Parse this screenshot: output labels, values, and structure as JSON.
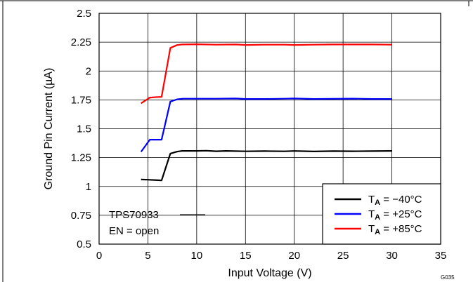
{
  "chart_data": {
    "type": "line",
    "xlabel": "Input Voltage (V)",
    "ylabel": "Ground Pin Current (µA)",
    "xlim": [
      0,
      35
    ],
    "ylim": [
      0.5,
      2.5
    ],
    "x_ticks": [
      "0",
      "5",
      "10",
      "15",
      "20",
      "25",
      "30",
      "35"
    ],
    "y_ticks": [
      "0.5",
      "0.75",
      "1",
      "1.25",
      "1.5",
      "1.75",
      "2",
      "2.25",
      "2.5"
    ],
    "grid": true,
    "legend_position": "bottom-right",
    "annotation": {
      "line1": "TPS70933",
      "line2": "EN = open"
    },
    "figure_id": "G035",
    "series": [
      {
        "sym": "T",
        "sub": "A",
        "rest": " = −40°C",
        "color": "#000000",
        "points": [
          [
            4.3,
            1.06
          ],
          [
            5,
            1.058
          ],
          [
            6,
            1.054
          ],
          [
            6.4,
            1.052
          ],
          [
            7.3,
            1.285
          ],
          [
            8,
            1.302
          ],
          [
            8.5,
            1.308
          ],
          [
            10,
            1.308
          ],
          [
            11,
            1.31
          ],
          [
            12,
            1.305
          ],
          [
            13,
            1.308
          ],
          [
            15,
            1.304
          ],
          [
            17,
            1.306
          ],
          [
            19,
            1.304
          ],
          [
            20,
            1.307
          ],
          [
            22,
            1.303
          ],
          [
            24,
            1.306
          ],
          [
            26,
            1.305
          ],
          [
            28,
            1.306
          ],
          [
            30,
            1.308
          ]
        ]
      },
      {
        "sym": "T",
        "sub": "A",
        "rest": " = +25°C",
        "color": "#0000ff",
        "points": [
          [
            4.3,
            1.3
          ],
          [
            5.2,
            1.405
          ],
          [
            6.4,
            1.405
          ],
          [
            7.3,
            1.735
          ],
          [
            8,
            1.755
          ],
          [
            8.6,
            1.76
          ],
          [
            10,
            1.76
          ],
          [
            12,
            1.76
          ],
          [
            14,
            1.762
          ],
          [
            15,
            1.758
          ],
          [
            17,
            1.758
          ],
          [
            19,
            1.76
          ],
          [
            20,
            1.762
          ],
          [
            22,
            1.758
          ],
          [
            24,
            1.759
          ],
          [
            26,
            1.761
          ],
          [
            28,
            1.758
          ],
          [
            30,
            1.758
          ]
        ]
      },
      {
        "sym": "T",
        "sub": "A",
        "rest": " = +85°C",
        "color": "#ff0000",
        "points": [
          [
            4.3,
            1.72
          ],
          [
            5.2,
            1.77
          ],
          [
            6,
            1.775
          ],
          [
            6.4,
            1.776
          ],
          [
            7.3,
            2.2
          ],
          [
            8,
            2.225
          ],
          [
            8.5,
            2.23
          ],
          [
            10,
            2.232
          ],
          [
            12,
            2.228
          ],
          [
            14,
            2.23
          ],
          [
            15,
            2.226
          ],
          [
            17,
            2.228
          ],
          [
            19,
            2.228
          ],
          [
            20,
            2.226
          ],
          [
            22,
            2.228
          ],
          [
            24,
            2.23
          ],
          [
            26,
            2.23
          ],
          [
            28,
            2.23
          ],
          [
            30,
            2.228
          ]
        ]
      }
    ]
  }
}
